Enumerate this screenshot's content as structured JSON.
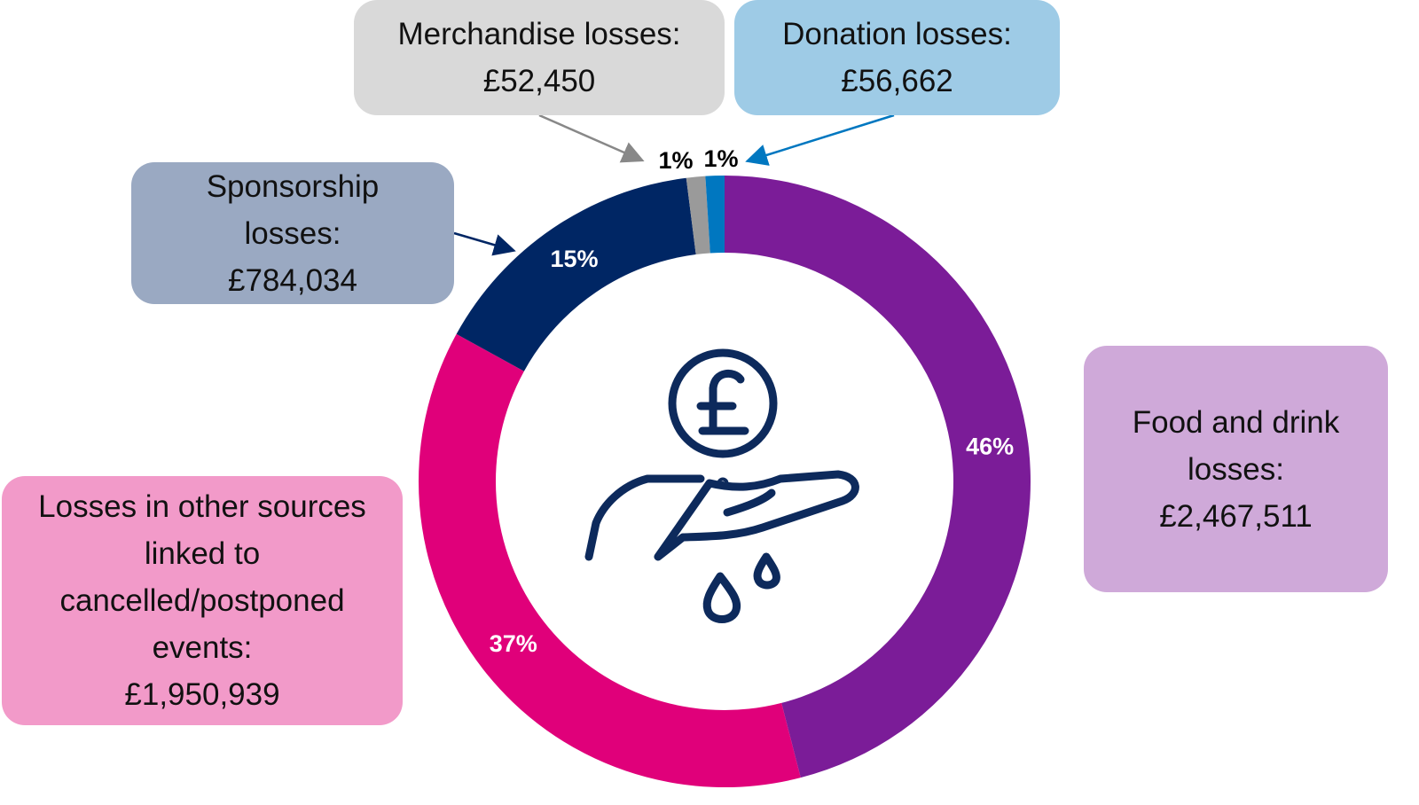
{
  "chart_data": {
    "type": "donut",
    "categories": [
      "Food and drink losses:",
      "Losses in other sources linked to cancelled/postponed events:",
      "Sponsorship losses:",
      "Merchandise losses:",
      "Donation losses:"
    ],
    "amounts": [
      "£2,467,511",
      "£1,950,939",
      "£784,034",
      "£52,450",
      "£56,662"
    ],
    "values": [
      46,
      37,
      15,
      1,
      1
    ],
    "value_labels": [
      "46%",
      "37%",
      "15%",
      "1%",
      "1%"
    ],
    "colors": [
      "#7b1c98",
      "#e0007a",
      "#002664",
      "#9a9a9a",
      "#0077c0"
    ]
  }
}
